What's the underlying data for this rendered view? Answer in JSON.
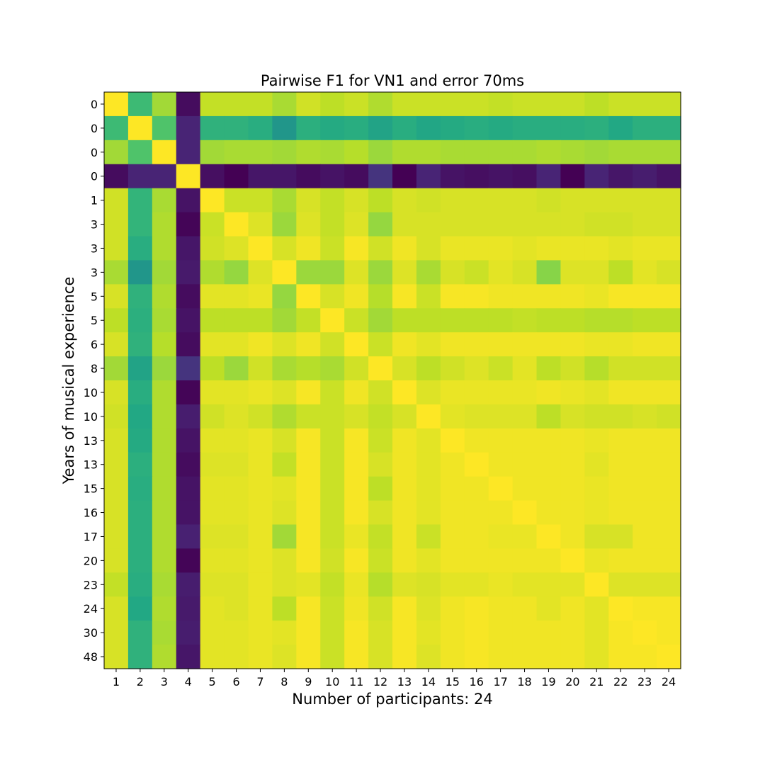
{
  "chart_data": {
    "type": "heatmap",
    "title": "Pairwise F1 for VN1 and error 70ms",
    "xlabel": "Number of participants: 24",
    "ylabel": "Years of musical experience",
    "x_tick_labels": [
      "1",
      "2",
      "3",
      "4",
      "5",
      "6",
      "7",
      "8",
      "9",
      "10",
      "11",
      "12",
      "13",
      "14",
      "15",
      "16",
      "17",
      "18",
      "19",
      "20",
      "21",
      "22",
      "23",
      "24"
    ],
    "y_tick_labels": [
      "0",
      "0",
      "0",
      "0",
      "1",
      "3",
      "3",
      "3",
      "5",
      "5",
      "6",
      "8",
      "10",
      "10",
      "13",
      "13",
      "15",
      "16",
      "17",
      "20",
      "23",
      "24",
      "30",
      "48"
    ],
    "colormap": "viridis",
    "value_range": [
      0,
      1
    ],
    "colorbar": false,
    "grid": false,
    "values": [
      [
        1,
        0.68,
        0.86,
        0.03,
        0.91,
        0.91,
        0.91,
        0.87,
        0.93,
        0.9,
        0.92,
        0.88,
        0.92,
        0.92,
        0.92,
        0.92,
        0.91,
        0.92,
        0.92,
        0.92,
        0.9,
        0.92,
        0.92,
        0.92
      ],
      [
        0.68,
        1,
        0.72,
        0.1,
        0.64,
        0.64,
        0.62,
        0.52,
        0.63,
        0.61,
        0.62,
        0.58,
        0.62,
        0.59,
        0.61,
        0.62,
        0.61,
        0.62,
        0.62,
        0.62,
        0.63,
        0.6,
        0.63,
        0.63
      ],
      [
        0.86,
        0.72,
        1,
        0.1,
        0.86,
        0.87,
        0.87,
        0.86,
        0.88,
        0.87,
        0.89,
        0.85,
        0.88,
        0.88,
        0.87,
        0.87,
        0.87,
        0.87,
        0.88,
        0.87,
        0.86,
        0.87,
        0.87,
        0.87
      ],
      [
        0.03,
        0.1,
        0.1,
        1,
        0.04,
        0,
        0.06,
        0.06,
        0.03,
        0.05,
        0.03,
        0.15,
        0,
        0.1,
        0.05,
        0.04,
        0.05,
        0.04,
        0.1,
        0,
        0.1,
        0.06,
        0.08,
        0.05
      ],
      [
        0.93,
        0.65,
        0.87,
        0.05,
        1,
        0.92,
        0.92,
        0.87,
        0.94,
        0.91,
        0.94,
        0.9,
        0.94,
        0.93,
        0.94,
        0.94,
        0.94,
        0.94,
        0.93,
        0.94,
        0.94,
        0.94,
        0.94,
        0.94
      ],
      [
        0.93,
        0.65,
        0.88,
        0.01,
        0.92,
        1,
        0.95,
        0.85,
        0.95,
        0.91,
        0.95,
        0.84,
        0.94,
        0.94,
        0.94,
        0.94,
        0.94,
        0.94,
        0.94,
        0.94,
        0.93,
        0.93,
        0.94,
        0.94
      ],
      [
        0.93,
        0.62,
        0.88,
        0.06,
        0.93,
        0.95,
        1,
        0.94,
        0.98,
        0.92,
        0.99,
        0.93,
        0.98,
        0.94,
        0.97,
        0.97,
        0.97,
        0.96,
        0.97,
        0.97,
        0.97,
        0.96,
        0.97,
        0.97
      ],
      [
        0.87,
        0.52,
        0.86,
        0.07,
        0.88,
        0.84,
        0.95,
        1,
        0.85,
        0.85,
        0.95,
        0.85,
        0.95,
        0.87,
        0.94,
        0.92,
        0.96,
        0.94,
        0.82,
        0.95,
        0.95,
        0.9,
        0.96,
        0.94
      ],
      [
        0.94,
        0.64,
        0.88,
        0.03,
        0.96,
        0.96,
        0.97,
        0.84,
        1,
        0.94,
        0.98,
        0.89,
        0.99,
        0.92,
        0.99,
        0.99,
        0.98,
        0.98,
        0.98,
        0.98,
        0.97,
        0.99,
        0.99,
        0.99
      ],
      [
        0.9,
        0.63,
        0.87,
        0.05,
        0.9,
        0.9,
        0.9,
        0.86,
        0.91,
        1,
        0.92,
        0.86,
        0.9,
        0.9,
        0.9,
        0.9,
        0.9,
        0.91,
        0.9,
        0.9,
        0.89,
        0.89,
        0.9,
        0.9
      ],
      [
        0.94,
        0.64,
        0.89,
        0.03,
        0.96,
        0.96,
        0.98,
        0.95,
        0.98,
        0.93,
        1,
        0.92,
        0.98,
        0.96,
        0.98,
        0.98,
        0.98,
        0.98,
        0.98,
        0.98,
        0.97,
        0.97,
        0.98,
        0.98
      ],
      [
        0.86,
        0.58,
        0.85,
        0.15,
        0.9,
        0.85,
        0.93,
        0.87,
        0.89,
        0.87,
        0.93,
        1,
        0.94,
        0.9,
        0.93,
        0.95,
        0.92,
        0.96,
        0.9,
        0.93,
        0.89,
        0.93,
        0.93,
        0.93
      ],
      [
        0.94,
        0.62,
        0.88,
        0.01,
        0.96,
        0.96,
        0.97,
        0.95,
        0.99,
        0.92,
        0.98,
        0.93,
        1,
        0.95,
        0.97,
        0.97,
        0.97,
        0.97,
        0.98,
        0.97,
        0.96,
        0.98,
        0.98,
        0.98
      ],
      [
        0.93,
        0.6,
        0.88,
        0.08,
        0.93,
        0.95,
        0.93,
        0.88,
        0.92,
        0.92,
        0.94,
        0.91,
        0.94,
        1,
        0.96,
        0.95,
        0.95,
        0.95,
        0.9,
        0.94,
        0.93,
        0.93,
        0.94,
        0.93
      ],
      [
        0.94,
        0.61,
        0.88,
        0.05,
        0.96,
        0.96,
        0.97,
        0.94,
        0.99,
        0.92,
        0.99,
        0.92,
        0.98,
        0.96,
        1,
        0.98,
        0.98,
        0.98,
        0.98,
        0.98,
        0.97,
        0.98,
        0.98,
        0.98
      ],
      [
        0.94,
        0.63,
        0.88,
        0.03,
        0.95,
        0.95,
        0.97,
        0.91,
        0.99,
        0.92,
        0.99,
        0.94,
        0.98,
        0.96,
        0.98,
        1,
        0.98,
        0.98,
        0.98,
        0.98,
        0.96,
        0.98,
        0.98,
        0.98
      ],
      [
        0.94,
        0.62,
        0.88,
        0.05,
        0.96,
        0.96,
        0.97,
        0.96,
        0.99,
        0.92,
        0.99,
        0.9,
        0.98,
        0.96,
        0.98,
        0.98,
        1,
        0.98,
        0.98,
        0.98,
        0.97,
        0.98,
        0.98,
        0.98
      ],
      [
        0.94,
        0.63,
        0.88,
        0.05,
        0.96,
        0.96,
        0.97,
        0.95,
        0.99,
        0.92,
        0.99,
        0.94,
        0.98,
        0.96,
        0.98,
        0.98,
        0.98,
        1,
        0.98,
        0.98,
        0.97,
        0.98,
        0.98,
        0.98
      ],
      [
        0.94,
        0.63,
        0.88,
        0.09,
        0.95,
        0.95,
        0.97,
        0.86,
        0.99,
        0.92,
        0.97,
        0.91,
        0.98,
        0.92,
        0.98,
        0.98,
        0.97,
        0.97,
        1,
        0.98,
        0.94,
        0.94,
        0.98,
        0.98
      ],
      [
        0.94,
        0.63,
        0.88,
        0.01,
        0.96,
        0.96,
        0.97,
        0.95,
        0.99,
        0.93,
        0.99,
        0.92,
        0.98,
        0.96,
        0.98,
        0.98,
        0.98,
        0.98,
        0.98,
        1,
        0.97,
        0.98,
        0.98,
        0.98
      ],
      [
        0.91,
        0.62,
        0.87,
        0.08,
        0.95,
        0.95,
        0.97,
        0.95,
        0.96,
        0.91,
        0.97,
        0.89,
        0.95,
        0.94,
        0.96,
        0.96,
        0.97,
        0.96,
        0.96,
        0.96,
        1,
        0.95,
        0.95,
        0.95
      ],
      [
        0.94,
        0.6,
        0.88,
        0.07,
        0.96,
        0.95,
        0.97,
        0.9,
        0.99,
        0.92,
        0.98,
        0.93,
        0.99,
        0.95,
        0.98,
        0.99,
        0.98,
        0.98,
        0.96,
        0.98,
        0.96,
        1,
        0.99,
        0.99
      ],
      [
        0.94,
        0.64,
        0.87,
        0.08,
        0.96,
        0.96,
        0.97,
        0.96,
        0.99,
        0.92,
        0.99,
        0.94,
        0.99,
        0.96,
        0.98,
        0.99,
        0.98,
        0.98,
        0.98,
        0.98,
        0.96,
        0.99,
        1,
        0.99
      ],
      [
        0.94,
        0.64,
        0.88,
        0.06,
        0.96,
        0.96,
        0.97,
        0.95,
        0.99,
        0.92,
        0.99,
        0.94,
        0.99,
        0.95,
        0.98,
        0.99,
        0.98,
        0.98,
        0.98,
        0.98,
        0.96,
        0.99,
        0.99,
        1
      ]
    ]
  }
}
